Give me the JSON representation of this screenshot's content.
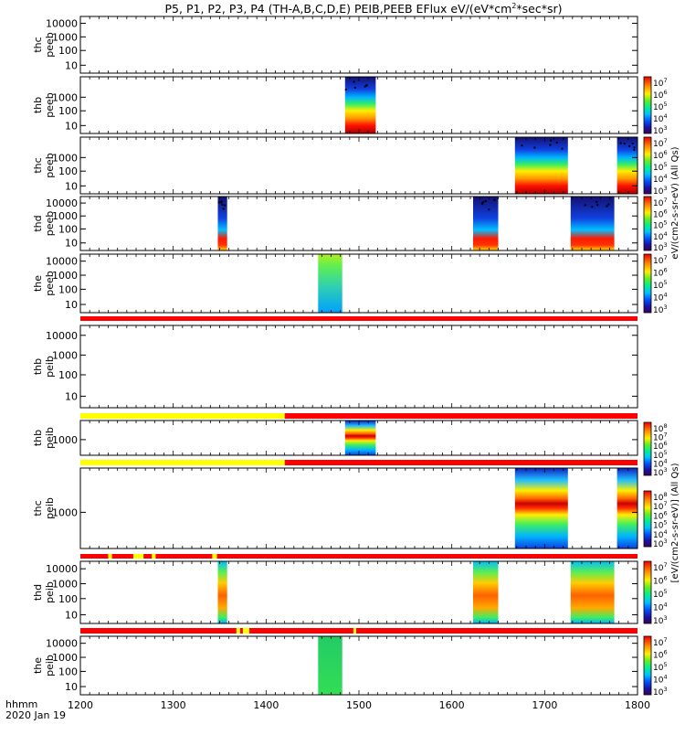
{
  "chart_data": {
    "type": "heatmap",
    "title": "P5, P1, P2, P3, P4 (TH-A,B,C,D,E) PEIB,PEEB EFlux eV/(eV*cm",
    "title_sup": "2",
    "title_tail": "*sec*sr)",
    "xaxis": {
      "range": [
        1200,
        1800
      ],
      "ticks": [
        1200,
        1300,
        1400,
        1500,
        1600,
        1700,
        1800
      ],
      "label_line1": "hhmm",
      "label_line2": "2020 Jan 19"
    },
    "colorbar_labels": {
      "peeb": "eV/(cm2-s-sr-eV) (All Qs)",
      "peib": "[eV/(cm2-s-sr-eV)] (All Qs)"
    },
    "panels": [
      {
        "id": "thc-peeb-1",
        "label1": "thc",
        "label2": "peeb",
        "yticks": [
          "10000",
          "1000",
          "100",
          "10"
        ],
        "blocks": []
      },
      {
        "id": "thb-peeb",
        "label1": "thb",
        "label2": "peeb",
        "yticks": [
          "1000",
          "100",
          "10"
        ],
        "blocks": [
          [
            1485,
            1518
          ]
        ],
        "colorbar": [
          "10^7",
          "10^6",
          "10^5",
          "10^4",
          "10^3"
        ]
      },
      {
        "id": "thc-peeb-2",
        "label1": "thc",
        "label2": "peeb",
        "yticks": [
          "1000",
          "100",
          "10"
        ],
        "blocks": [
          [
            1668,
            1725
          ],
          [
            1778,
            1800
          ]
        ],
        "colorbar": [
          "10^7",
          "10^6",
          "10^5",
          "10^4",
          "10^3"
        ]
      },
      {
        "id": "thd-peeb",
        "label1": "thd",
        "label2": "peeb",
        "yticks": [
          "10000",
          "1000",
          "100",
          "10"
        ],
        "blocks": [
          [
            1348,
            1358
          ],
          [
            1623,
            1650
          ],
          [
            1728,
            1775
          ]
        ],
        "colorbar": [
          "10^7",
          "10^6",
          "10^5",
          "10^4",
          "10^3"
        ]
      },
      {
        "id": "the-peeb",
        "label1": "the",
        "label2": "peeb",
        "yticks": [
          "10000",
          "1000",
          "100",
          "10"
        ],
        "blocks": [
          [
            1456,
            1482
          ]
        ],
        "colorbar": [
          "10^7",
          "10^6",
          "10^5",
          "10^4",
          "10^3"
        ]
      },
      {
        "id": "thb-peib-1",
        "label1": "thb",
        "label2": "peib",
        "yticks": [
          "10000",
          "1000",
          "100",
          "10"
        ],
        "blocks": []
      },
      {
        "id": "thb-peib-2",
        "label1": "thb",
        "label2": "peib",
        "yticks": [
          "1000"
        ],
        "blocks": [
          [
            1485,
            1518
          ]
        ],
        "colorbar": [
          "10^8",
          "10^7",
          "10^6",
          "10^5",
          "10^4",
          "10^3"
        ]
      },
      {
        "id": "thc-peib",
        "label1": "thc",
        "label2": "peib",
        "yticks": [
          "1000"
        ],
        "blocks": [
          [
            1668,
            1725
          ],
          [
            1778,
            1800
          ]
        ],
        "colorbar": [
          "10^8",
          "10^7",
          "10^6",
          "10^5",
          "10^4",
          "10^3"
        ]
      },
      {
        "id": "thd-peib",
        "label1": "thd",
        "label2": "peib",
        "yticks": [
          "10000",
          "1000",
          "100",
          "10"
        ],
        "blocks": [
          [
            1348,
            1358
          ],
          [
            1623,
            1650
          ],
          [
            1728,
            1775
          ]
        ],
        "colorbar": [
          "10^7",
          "10^6",
          "10^5",
          "10^4",
          "10^3"
        ]
      },
      {
        "id": "the-peib",
        "label1": "the",
        "label2": "peib",
        "yticks": [
          "10000",
          "1000",
          "100",
          "10"
        ],
        "blocks": [
          [
            1456,
            1482
          ]
        ],
        "colorbar": [
          "10^7",
          "10^6",
          "10^5",
          "10^4",
          "10^3"
        ]
      }
    ],
    "mode_bars": [
      {
        "id": "mode-bar-1",
        "segments": [
          {
            "from": 1200,
            "to": 1800,
            "color": "#ff0000"
          }
        ]
      },
      {
        "id": "mode-bar-2",
        "segments": [
          {
            "from": 1200,
            "to": 1420,
            "color": "#ffff00"
          },
          {
            "from": 1420,
            "to": 1800,
            "color": "#ff0000"
          }
        ]
      },
      {
        "id": "mode-bar-3",
        "segments": [
          {
            "from": 1200,
            "to": 1420,
            "color": "#ffff00"
          },
          {
            "from": 1420,
            "to": 1800,
            "color": "#ff0000"
          }
        ]
      },
      {
        "id": "mode-bar-4",
        "segments": [
          {
            "from": 1200,
            "to": 1800,
            "color": "#ff0000"
          },
          {
            "from": 1230,
            "to": 1234,
            "color": "#ffff00"
          },
          {
            "from": 1257,
            "to": 1268,
            "color": "#ffff00"
          },
          {
            "from": 1277,
            "to": 1281,
            "color": "#ffff00"
          },
          {
            "from": 1342,
            "to": 1347,
            "color": "#ffff00"
          }
        ]
      },
      {
        "id": "mode-bar-5",
        "segments": [
          {
            "from": 1200,
            "to": 1800,
            "color": "#ff0000"
          },
          {
            "from": 1368,
            "to": 1372,
            "color": "#ffff00"
          },
          {
            "from": 1375,
            "to": 1382,
            "color": "#ffff00"
          },
          {
            "from": 1494,
            "to": 1497,
            "color": "#ffff00"
          }
        ]
      }
    ]
  }
}
